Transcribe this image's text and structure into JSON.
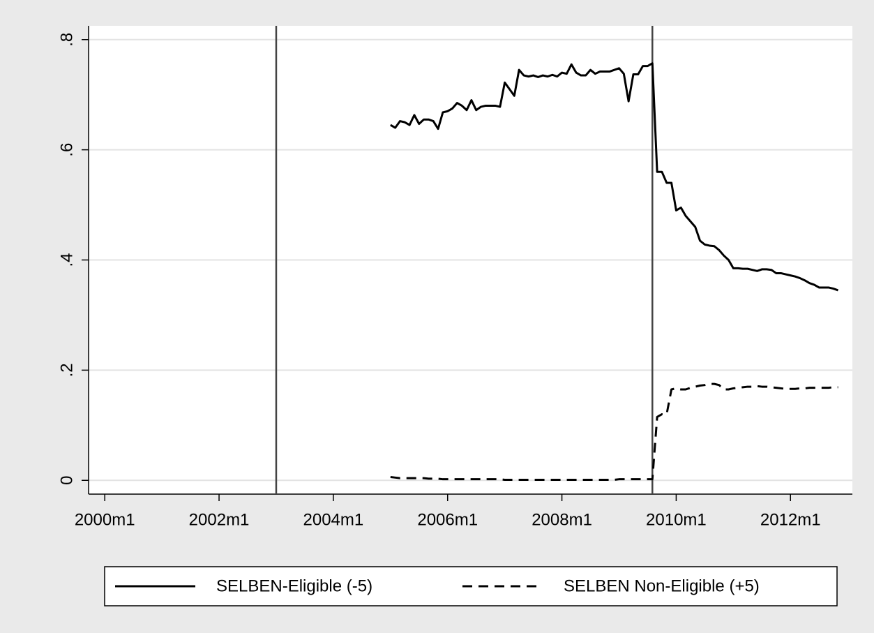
{
  "chart_data": {
    "type": "line",
    "x": [
      540,
      541,
      542,
      543,
      544,
      545,
      546,
      547,
      548,
      549,
      550,
      551,
      552,
      553,
      554,
      555,
      556,
      557,
      558,
      559,
      560,
      561,
      562,
      563,
      564,
      565,
      566,
      567,
      568,
      569,
      570,
      571,
      572,
      573,
      574,
      575,
      576,
      577,
      578,
      579,
      580,
      581,
      582,
      583,
      584,
      585,
      586,
      587,
      588,
      589,
      590,
      591,
      592,
      593,
      594,
      595,
      596,
      597,
      598,
      599,
      600,
      601,
      602,
      603,
      604,
      605,
      606,
      607,
      608,
      609,
      610,
      611,
      612,
      613,
      614,
      615,
      616,
      617,
      618,
      619,
      620,
      621,
      622,
      623,
      624,
      625,
      626,
      627,
      628,
      629,
      630,
      631,
      632,
      633,
      634
    ],
    "series": [
      {
        "name": "SELBEN-Eligible (-5)",
        "color": "#000000",
        "line_style": "solid",
        "values": [
          0.645,
          0.64,
          0.652,
          0.65,
          0.645,
          0.663,
          0.647,
          0.655,
          0.655,
          0.652,
          0.638,
          0.668,
          0.67,
          0.675,
          0.685,
          0.68,
          0.672,
          0.69,
          0.672,
          0.678,
          0.68,
          0.68,
          0.68,
          0.678,
          0.722,
          0.71,
          0.698,
          0.745,
          0.735,
          0.733,
          0.735,
          0.732,
          0.735,
          0.733,
          0.736,
          0.733,
          0.74,
          0.738,
          0.755,
          0.74,
          0.735,
          0.735,
          0.745,
          0.738,
          0.742,
          0.742,
          0.742,
          0.745,
          0.748,
          0.738,
          0.688,
          0.737,
          0.737,
          0.752,
          0.752,
          0.757,
          0.56,
          0.56,
          0.54,
          0.54,
          0.49,
          0.495,
          0.48,
          0.47,
          0.46,
          0.435,
          0.428,
          0.426,
          0.425,
          0.418,
          0.408,
          0.4,
          0.385,
          0.385,
          0.384,
          0.384,
          0.382,
          0.38,
          0.383,
          0.383,
          0.382,
          0.376,
          0.376,
          0.374,
          0.372,
          0.37,
          0.367,
          0.363,
          0.358,
          0.355,
          0.35,
          0.35,
          0.35,
          0.348,
          0.345
        ]
      },
      {
        "name": "SELBEN Non-Eligible (+5)",
        "color": "#000000",
        "line_style": "dashed",
        "values": [
          0.006,
          0.005,
          0.004,
          0.004,
          0.004,
          0.004,
          0.004,
          0.004,
          0.003,
          0.003,
          0.003,
          0.002,
          0.002,
          0.002,
          0.002,
          0.002,
          0.002,
          0.002,
          0.002,
          0.002,
          0.002,
          0.002,
          0.002,
          0.002,
          0.001,
          0.001,
          0.001,
          0.001,
          0.001,
          0.001,
          0.001,
          0.001,
          0.001,
          0.001,
          0.001,
          0.001,
          0.001,
          0.001,
          0.001,
          0.001,
          0.001,
          0.001,
          0.001,
          0.001,
          0.001,
          0.001,
          0.001,
          0.001,
          0.002,
          0.002,
          0.002,
          0.002,
          0.002,
          0.002,
          0.002,
          0.002,
          0.115,
          0.12,
          0.12,
          0.165,
          0.167,
          0.165,
          0.165,
          0.168,
          0.17,
          0.172,
          0.173,
          0.175,
          0.175,
          0.173,
          0.165,
          0.165,
          0.167,
          0.168,
          0.169,
          0.17,
          0.17,
          0.171,
          0.17,
          0.17,
          0.169,
          0.168,
          0.167,
          0.166,
          0.166,
          0.166,
          0.167,
          0.167,
          0.168,
          0.168,
          0.168,
          0.168,
          0.168,
          0.169,
          0.169
        ]
      }
    ],
    "xlim": [
      476.6,
      637
    ],
    "xticks": [
      {
        "value": 480,
        "label": "2000m1"
      },
      {
        "value": 504,
        "label": "2002m1"
      },
      {
        "value": 528,
        "label": "2004m1"
      },
      {
        "value": 552,
        "label": "2006m1"
      },
      {
        "value": 576,
        "label": "2008m1"
      },
      {
        "value": 600,
        "label": "2010m1"
      },
      {
        "value": 624,
        "label": "2012m1"
      }
    ],
    "ylim": [
      -0.025,
      0.825
    ],
    "yticks": [
      0,
      {
        "value": 0.2,
        "label": ".2"
      },
      {
        "value": 0.4,
        "label": ".4"
      },
      {
        "value": 0.6,
        "label": ".6"
      },
      {
        "value": 0.8,
        "label": ".8"
      }
    ],
    "xlines": [
      516,
      595
    ],
    "grid": true,
    "legend": "bottom"
  }
}
